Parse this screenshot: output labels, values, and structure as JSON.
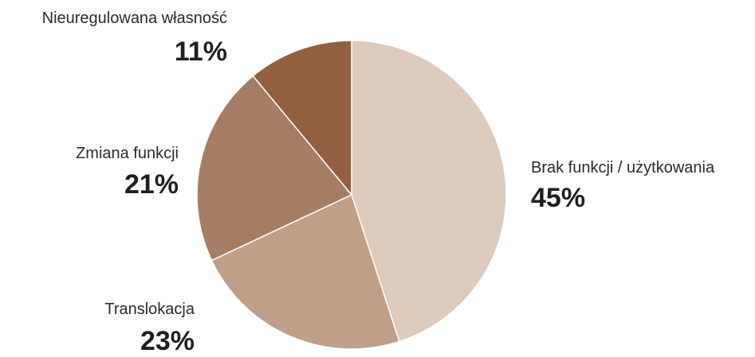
{
  "chart_data": {
    "type": "pie",
    "title": "",
    "categories": [
      "Brak funkcji / użytkowania",
      "Translokacja",
      "Zmiana funkcji",
      "Nieuregulowana własność"
    ],
    "values": [
      45,
      23,
      21,
      11
    ],
    "value_labels": [
      "45%",
      "23%",
      "21%",
      "11%"
    ],
    "colors": [
      "#dccabc",
      "#c09f89",
      "#a57d65",
      "#925f40"
    ],
    "start_angle": "12 o'clock",
    "direction": "clockwise",
    "legend": "none"
  }
}
